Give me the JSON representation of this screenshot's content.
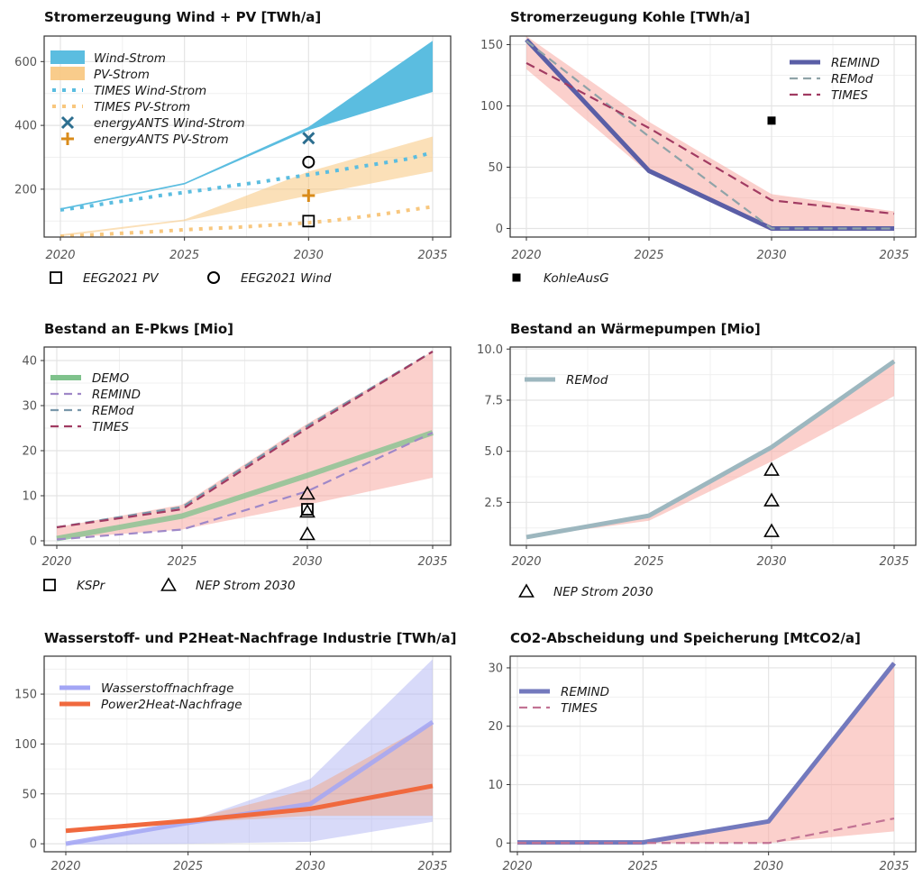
{
  "chart_data": [
    {
      "type": "line",
      "title": "Stromerzeugung Wind + PV [TWh/a]",
      "xlim": [
        2020,
        2035
      ],
      "ylim": [
        50,
        680
      ],
      "xticks": [
        2020,
        2025,
        2030,
        2035
      ],
      "yticks": [
        200,
        400,
        600
      ],
      "grid": true,
      "legend_position": "top-left",
      "series": [
        {
          "name": "Wind-Strom",
          "kind": "ribbon",
          "color": "#5bbde0",
          "opacity": 1,
          "x": [
            2020,
            2025,
            2030,
            2035
          ],
          "lower": [
            135,
            215,
            385,
            505
          ],
          "upper": [
            140,
            220,
            395,
            665
          ]
        },
        {
          "name": "PV-Strom",
          "kind": "ribbon",
          "color": "#f8c77e",
          "opacity": 0.55,
          "x": [
            2020,
            2025,
            2030,
            2035
          ],
          "lower": [
            52,
            100,
            180,
            255
          ],
          "upper": [
            58,
            105,
            255,
            365
          ]
        },
        {
          "name": "TIMES Wind-Strom",
          "kind": "line",
          "dash": "dotted",
          "color": "#5bbde0",
          "x": [
            2020,
            2021,
            2022,
            2023,
            2024,
            2025,
            2026,
            2027,
            2028,
            2029,
            2030,
            2031,
            2032,
            2033,
            2034,
            2035
          ],
          "y": [
            135,
            145,
            157,
            168,
            180,
            190,
            200,
            212,
            222,
            234,
            245,
            257,
            270,
            282,
            295,
            315
          ]
        },
        {
          "name": "TIMES PV-Strom",
          "kind": "line",
          "dash": "dotted",
          "color": "#f8c77e",
          "x": [
            2020,
            2021,
            2022,
            2023,
            2024,
            2025,
            2026,
            2027,
            2028,
            2029,
            2030,
            2031,
            2032,
            2033,
            2034,
            2035
          ],
          "y": [
            52,
            56,
            60,
            64,
            68,
            73,
            77,
            80,
            85,
            90,
            95,
            102,
            112,
            122,
            134,
            145
          ]
        },
        {
          "name": "energyANTS Wind-Strom",
          "kind": "marker",
          "shape": "x",
          "color": "#2c6e8f",
          "x": [
            2030
          ],
          "y": [
            360
          ]
        },
        {
          "name": "energyANTS PV-Strom",
          "kind": "marker",
          "shape": "plus",
          "color": "#d98b1a",
          "x": [
            2030
          ],
          "y": [
            180
          ]
        },
        {
          "name": "EEG2021 PV",
          "kind": "marker",
          "shape": "square",
          "color": "#000000",
          "x": [
            2030
          ],
          "y": [
            100
          ],
          "legend": "bottom"
        },
        {
          "name": "EEG2021 Wind",
          "kind": "marker",
          "shape": "circle",
          "color": "#000000",
          "x": [
            2030
          ],
          "y": [
            285
          ],
          "legend": "bottom"
        }
      ]
    },
    {
      "type": "line",
      "title": "Stromerzeugung Kohle [TWh/a]",
      "xlim": [
        2020,
        2035
      ],
      "ylim": [
        -7,
        157
      ],
      "xticks": [
        2020,
        2025,
        2030,
        2035
      ],
      "yticks": [
        0,
        50,
        100,
        150
      ],
      "grid": true,
      "legend_position": "top-right",
      "series": [
        {
          "name": "band",
          "kind": "ribbon",
          "color": "#f8a9a3",
          "opacity": 0.55,
          "x": [
            2020,
            2025,
            2030,
            2035
          ],
          "lower": [
            130,
            45,
            -2,
            -2
          ],
          "upper": [
            157,
            87,
            28,
            14
          ]
        },
        {
          "name": "REMIND",
          "kind": "line",
          "dash": "solid",
          "width": 5,
          "color": "#5a5ea6",
          "x": [
            2020,
            2025,
            2030,
            2035
          ],
          "y": [
            154,
            47,
            0,
            0
          ]
        },
        {
          "name": "REMod",
          "kind": "line",
          "dash": "dashed",
          "color": "#8fa3a8",
          "x": [
            2020,
            2025,
            2030,
            2035
          ],
          "y": [
            153,
            75,
            0,
            0
          ]
        },
        {
          "name": "TIMES",
          "kind": "line",
          "dash": "dashed",
          "color": "#a13b62",
          "x": [
            2020,
            2025,
            2030,
            2035
          ],
          "y": [
            135,
            82,
            23,
            12
          ]
        },
        {
          "name": "KohleAusG",
          "kind": "marker",
          "shape": "filled-square",
          "color": "#000000",
          "x": [
            2030
          ],
          "y": [
            88
          ],
          "legend": "bottom"
        }
      ]
    },
    {
      "type": "line",
      "title": "Bestand an E-Pkws [Mio]",
      "xlim": [
        2020,
        2035
      ],
      "ylim": [
        -1,
        43
      ],
      "xticks": [
        2020,
        2025,
        2030,
        2035
      ],
      "yticks": [
        0,
        10,
        20,
        30,
        40
      ],
      "grid": true,
      "legend_position": "top-left",
      "series": [
        {
          "name": "band",
          "kind": "ribbon",
          "color": "#f8a9a3",
          "opacity": 0.55,
          "x": [
            2020,
            2025,
            2030,
            2035
          ],
          "lower": [
            0.5,
            2.5,
            8,
            14
          ],
          "upper": [
            3,
            8,
            26,
            42
          ]
        },
        {
          "name": "DEMO",
          "kind": "line",
          "dash": "solid",
          "width": 6,
          "color": "#7fc28c",
          "opacity": 0.75,
          "x": [
            2020,
            2025,
            2030,
            2035
          ],
          "y": [
            0.5,
            5.5,
            14.5,
            24
          ]
        },
        {
          "name": "REMIND",
          "kind": "line",
          "dash": "dashed",
          "color": "#9f88c8",
          "x": [
            2020,
            2025,
            2030,
            2035
          ],
          "y": [
            0.3,
            2.5,
            11,
            24
          ]
        },
        {
          "name": "REMod",
          "kind": "line",
          "dash": "dashed",
          "color": "#7a98ab",
          "x": [
            2020,
            2025,
            2030,
            2035
          ],
          "y": [
            3,
            7.5,
            25.5,
            42
          ]
        },
        {
          "name": "TIMES",
          "kind": "line",
          "dash": "dashed",
          "color": "#a13b62",
          "x": [
            2020,
            2025,
            2030,
            2035
          ],
          "y": [
            3,
            7,
            25,
            42
          ]
        },
        {
          "name": "KSPr",
          "kind": "marker",
          "shape": "square",
          "color": "#000000",
          "x": [
            2030
          ],
          "y": [
            7
          ],
          "legend": "bottom"
        },
        {
          "name": "NEP Strom 2030",
          "kind": "marker",
          "shape": "triangle",
          "color": "#000000",
          "x": [
            2030,
            2030,
            2030
          ],
          "y": [
            10.5,
            6.5,
            1.5
          ],
          "legend": "bottom"
        }
      ]
    },
    {
      "type": "line",
      "title": "Bestand an Wärmepumpen [Mio]",
      "xlim": [
        2020,
        2035
      ],
      "ylim": [
        0.4,
        10.1
      ],
      "xticks": [
        2020,
        2025,
        2030,
        2035
      ],
      "yticks": [
        2.5,
        5.0,
        7.5,
        10.0
      ],
      "ytick_labels": [
        "2.5",
        "5.0",
        "7.5",
        "10.0"
      ],
      "grid": true,
      "legend_position": "top-left",
      "series": [
        {
          "name": "band",
          "kind": "ribbon",
          "color": "#f8a9a3",
          "opacity": 0.55,
          "x": [
            2020,
            2025,
            2030,
            2035
          ],
          "lower": [
            0.8,
            1.6,
            4.5,
            7.7
          ],
          "upper": [
            0.9,
            1.9,
            5.3,
            9.5
          ]
        },
        {
          "name": "REMod",
          "kind": "line",
          "dash": "solid",
          "width": 5,
          "color": "#9db7bf",
          "x": [
            2020,
            2025,
            2030,
            2035
          ],
          "y": [
            0.8,
            1.85,
            5.2,
            9.4
          ]
        },
        {
          "name": "NEP Strom 2030",
          "kind": "marker",
          "shape": "triangle",
          "color": "#000000",
          "x": [
            2030,
            2030,
            2030
          ],
          "y": [
            4.1,
            2.6,
            1.1
          ],
          "legend": "bottom"
        }
      ]
    },
    {
      "type": "line",
      "title": "Wasserstoff- und P2Heat-Nachfrage Industrie [TWh/a]",
      "xlim": [
        2020,
        2035
      ],
      "ylim": [
        -8,
        188
      ],
      "xticks": [
        2020,
        2025,
        2030,
        2035
      ],
      "yticks": [
        0,
        50,
        100,
        150
      ],
      "grid": true,
      "legend_position": "top-left",
      "series": [
        {
          "name": "Wasserstoffnachfrage band",
          "kind": "ribbon",
          "color": "#a8acf2",
          "opacity": 0.45,
          "x": [
            2020,
            2025,
            2030,
            2035
          ],
          "lower": [
            -1,
            0,
            2,
            22
          ],
          "upper": [
            1,
            22,
            65,
            185
          ]
        },
        {
          "name": "Power2Heat-Nachfrage band",
          "kind": "ribbon",
          "color": "#f4a07a",
          "opacity": 0.45,
          "x": [
            2020,
            2025,
            2030,
            2035
          ],
          "lower": [
            12,
            21,
            28,
            28
          ],
          "upper": [
            14,
            24,
            55,
            122
          ]
        },
        {
          "name": "Wasserstoffnachfrage",
          "kind": "line",
          "dash": "solid",
          "width": 5,
          "color": "#a3a6f5",
          "opacity": 0.85,
          "x": [
            2020,
            2025,
            2030,
            2035
          ],
          "y": [
            0,
            21,
            40,
            122
          ]
        },
        {
          "name": "Power2Heat-Nachfrage",
          "kind": "line",
          "dash": "solid",
          "width": 5,
          "color": "#f0693e",
          "x": [
            2020,
            2025,
            2030,
            2035
          ],
          "y": [
            13,
            23,
            35,
            58
          ]
        }
      ]
    },
    {
      "type": "line",
      "title": "CO2-Abscheidung und Speicherung [MtCO2/a]",
      "xlim": [
        2020,
        2035
      ],
      "ylim": [
        -1.5,
        32
      ],
      "xticks": [
        2020,
        2025,
        2030,
        2035
      ],
      "yticks": [
        0,
        10,
        20,
        30
      ],
      "grid": true,
      "legend_position": "top-left",
      "series": [
        {
          "name": "band",
          "kind": "ribbon",
          "color": "#f8a9a3",
          "opacity": 0.55,
          "x": [
            2020,
            2025,
            2030,
            2035
          ],
          "lower": [
            0,
            0,
            0,
            2
          ],
          "upper": [
            0.3,
            0.3,
            4,
            31
          ]
        },
        {
          "name": "REMIND",
          "kind": "line",
          "dash": "solid",
          "width": 5,
          "color": "#7379bd",
          "x": [
            2020,
            2025,
            2030,
            2035
          ],
          "y": [
            0.1,
            0.1,
            3.7,
            30.8
          ]
        },
        {
          "name": "TIMES",
          "kind": "line",
          "dash": "dashed",
          "color": "#c27394",
          "x": [
            2020,
            2025,
            2030,
            2035
          ],
          "y": [
            0,
            0,
            0,
            4.2
          ]
        }
      ]
    }
  ]
}
